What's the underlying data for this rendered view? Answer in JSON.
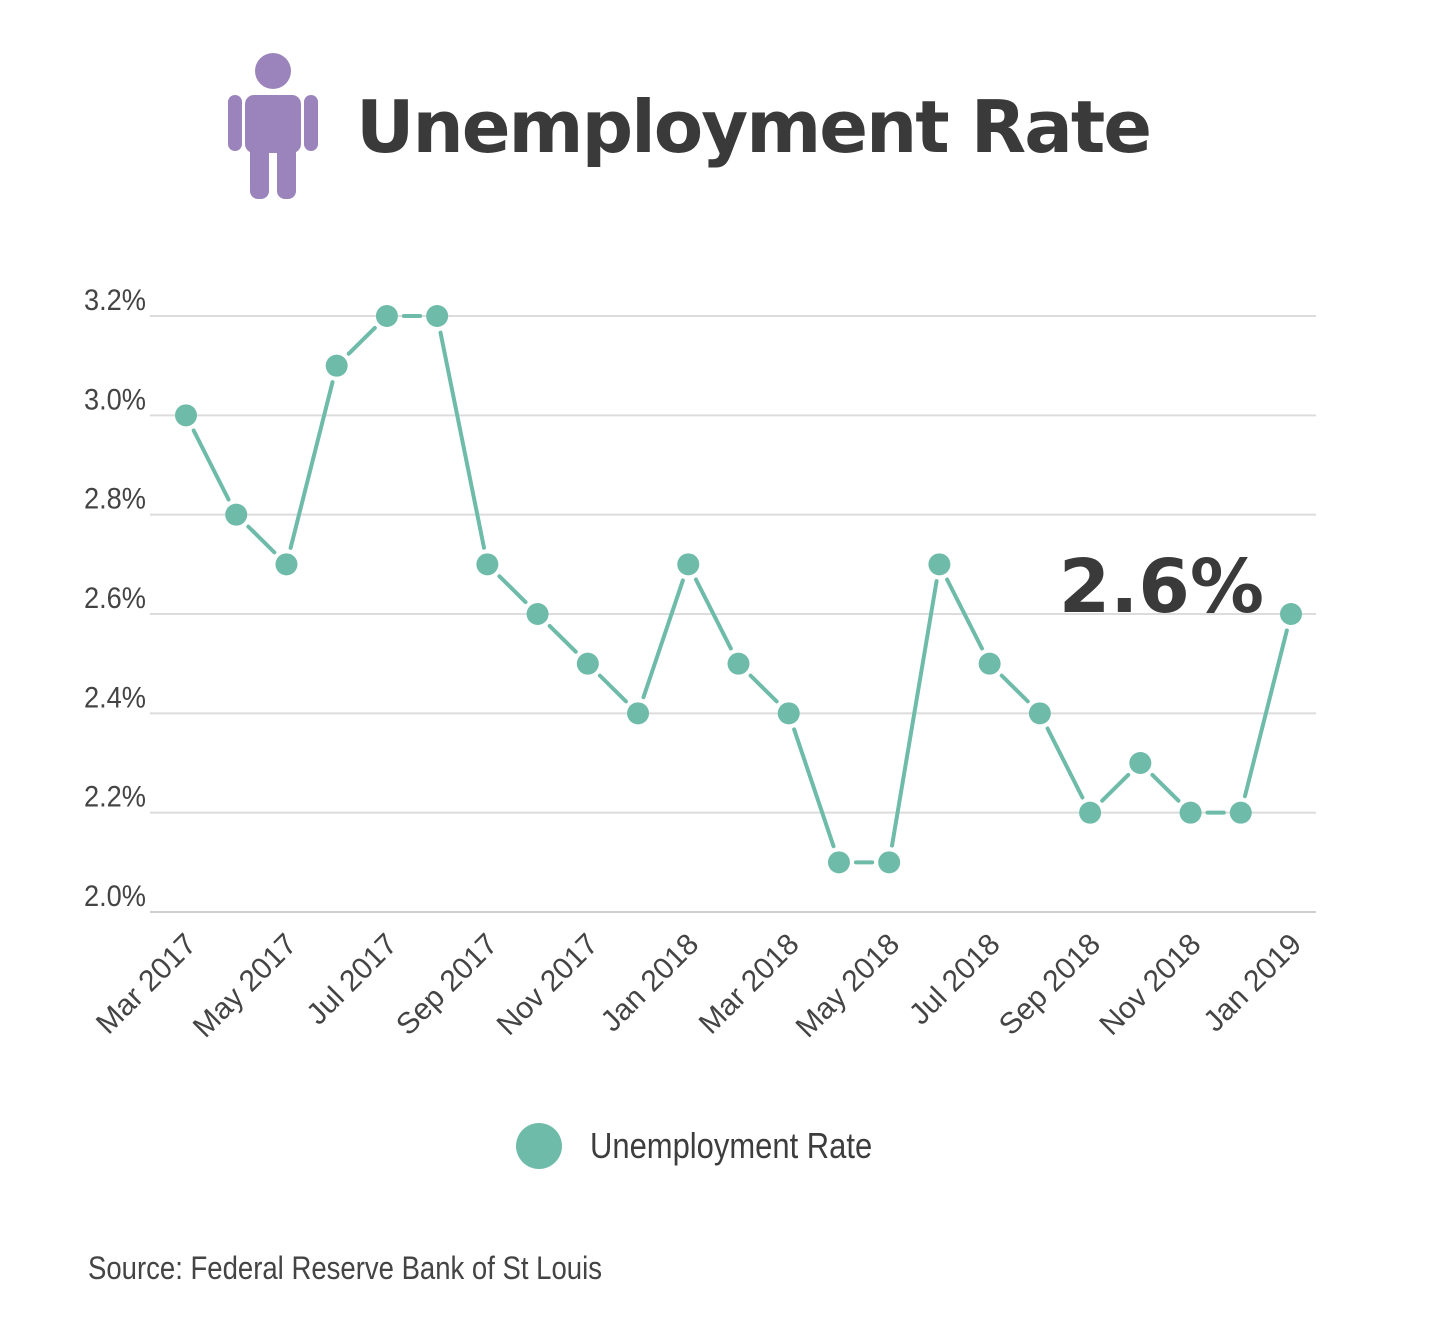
{
  "header": {
    "title": "Unemployment Rate",
    "icon": "person-icon",
    "icon_color": "#9b84bb"
  },
  "chart_data": {
    "type": "line",
    "x": [
      "Mar 2017",
      "Apr 2017",
      "May 2017",
      "Jun 2017",
      "Jul 2017",
      "Aug 2017",
      "Sep 2017",
      "Oct 2017",
      "Nov 2017",
      "Dec 2017",
      "Jan 2018",
      "Feb 2018",
      "Mar 2018",
      "Apr 2018",
      "May 2018",
      "Jun 2018",
      "Jul 2018",
      "Aug 2018",
      "Sep 2018",
      "Oct 2018",
      "Nov 2018",
      "Dec 2018",
      "Jan 2019"
    ],
    "xtick_labels": [
      "Mar 2017",
      "May 2017",
      "Jul 2017",
      "Sep 2017",
      "Nov 2017",
      "Jan 2018",
      "Mar 2018",
      "May 2018",
      "Jul 2018",
      "Sep 2018",
      "Nov 2018",
      "Jan 2019"
    ],
    "series": [
      {
        "name": "Unemployment Rate",
        "color": "#6fbba9",
        "values": [
          3.0,
          2.8,
          2.7,
          3.1,
          3.2,
          3.2,
          2.7,
          2.6,
          2.5,
          2.4,
          2.7,
          2.5,
          2.4,
          2.1,
          2.1,
          2.7,
          2.5,
          2.4,
          2.2,
          2.3,
          2.2,
          2.2,
          2.6
        ]
      }
    ],
    "ylim": [
      2.0,
      3.2
    ],
    "yticks": [
      2.0,
      2.2,
      2.4,
      2.6,
      2.8,
      3.0,
      3.2
    ],
    "ytick_labels": [
      "2.0%",
      "2.2%",
      "2.4%",
      "2.6%",
      "2.8%",
      "3.0%",
      "3.2%"
    ],
    "annotation": "2.6%",
    "grid": true,
    "legend_position": "bottom"
  },
  "legend": {
    "label": "Unemployment Rate"
  },
  "source": "Source:  Federal Reserve Bank of St Louis"
}
